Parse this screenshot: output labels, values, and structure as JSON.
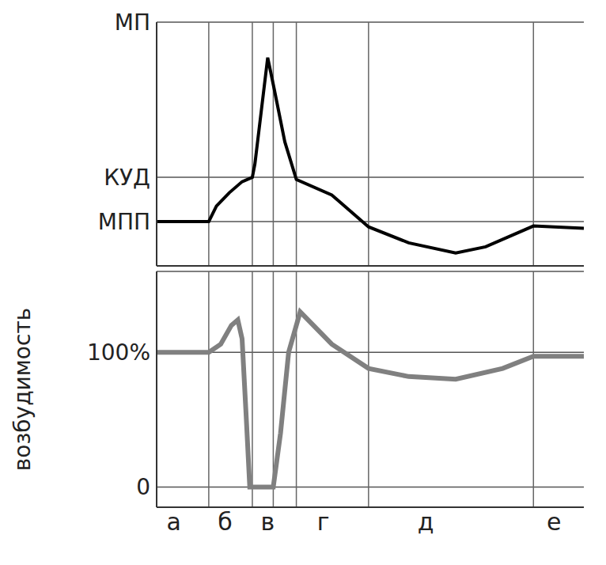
{
  "chart_data": [
    {
      "type": "line",
      "color": "#000000",
      "xlim": [
        0,
        100
      ],
      "ylim": [
        -1,
        4.5
      ],
      "yticks": [
        {
          "value": 0,
          "label": "МПП"
        },
        {
          "value": 1,
          "label": "КУД"
        },
        {
          "value": 4.5,
          "label": "МП"
        }
      ],
      "grid": true,
      "tick_labels": "y",
      "phase_boundaries": [
        12.2,
        22.4,
        27.3,
        32.7,
        49.6,
        88.2
      ],
      "x": [
        0,
        12.2,
        14,
        17,
        20,
        22.4,
        23,
        24.5,
        26,
        27.5,
        30,
        32.7,
        41,
        49.6,
        59,
        70,
        77,
        88.2,
        100
      ],
      "values": [
        0,
        0,
        0.35,
        0.65,
        0.9,
        1.0,
        1.3,
        2.5,
        3.7,
        3.0,
        1.8,
        0.95,
        0.6,
        -0.12,
        -0.48,
        -0.71,
        -0.57,
        -0.1,
        -0.15
      ]
    },
    {
      "type": "line",
      "color": "#808080",
      "y_label": "возбудимость",
      "xlim": [
        0,
        100
      ],
      "xticks": [
        {
          "value": 4,
          "label": "а"
        },
        {
          "value": 16,
          "label": "б"
        },
        {
          "value": 26,
          "label": "в"
        },
        {
          "value": 39,
          "label": "г"
        },
        {
          "value": 63,
          "label": "д"
        },
        {
          "value": 93,
          "label": "е"
        }
      ],
      "ylim": [
        -15,
        160
      ],
      "yticks": [
        0,
        {
          "value": 100,
          "label": "100%"
        }
      ],
      "grid": true,
      "phase_boundaries": [
        12.2,
        22.4,
        27.3,
        32.7,
        49.6,
        88.2
      ],
      "x": [
        0,
        12.2,
        15,
        17.5,
        19,
        20,
        21,
        21.8,
        27.3,
        29,
        30.9,
        33.6,
        41,
        49.6,
        59,
        70,
        81,
        88.2,
        100
      ],
      "values": [
        100,
        100,
        106,
        120,
        124,
        110,
        50,
        0,
        0,
        40,
        100,
        130,
        106,
        88,
        82,
        80,
        88,
        97,
        97
      ]
    }
  ]
}
